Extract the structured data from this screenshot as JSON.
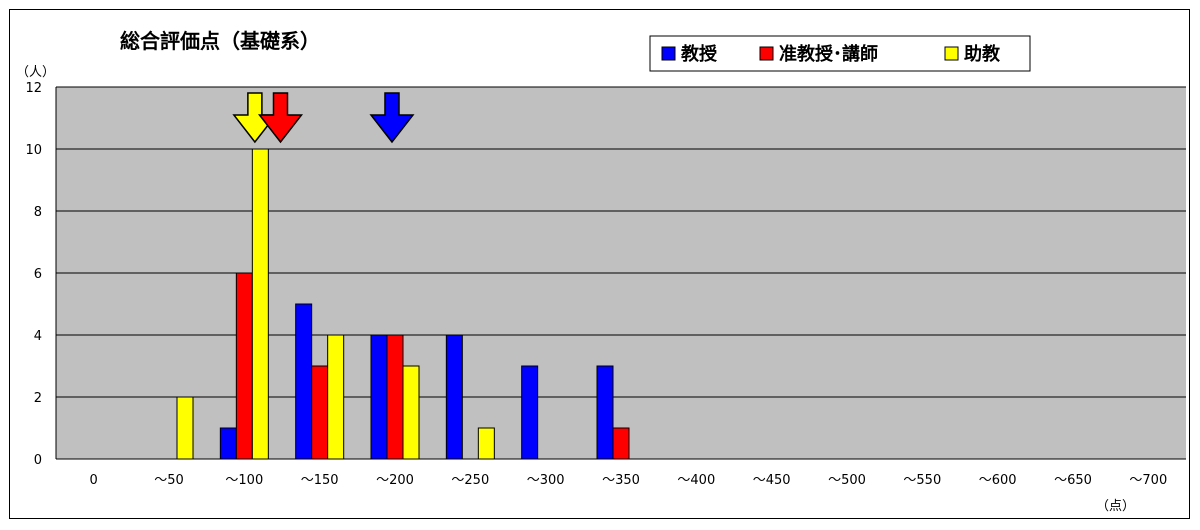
{
  "chart_data": {
    "type": "bar",
    "title": "総合評価点（基礎系）",
    "y_unit": "（人）",
    "x_unit": "（点）",
    "ylim": [
      0,
      12
    ],
    "yticks": [
      0,
      2,
      4,
      6,
      8,
      10,
      12
    ],
    "grid": true,
    "legend_position": "top-right",
    "categories": [
      "0",
      "～50",
      "～100",
      "～150",
      "～200",
      "～250",
      "～300",
      "～350",
      "～400",
      "～450",
      "～500",
      "～550",
      "～600",
      "～650",
      "～700"
    ],
    "series": [
      {
        "name": "教授",
        "color": "#0000ff",
        "values": [
          0,
          0,
          1,
          5,
          4,
          4,
          3,
          3,
          0,
          0,
          0,
          0,
          0,
          0,
          0
        ]
      },
      {
        "name": "准教授･講師",
        "color": "#ff0000",
        "values": [
          0,
          0,
          6,
          3,
          4,
          0,
          0,
          1,
          0,
          0,
          0,
          0,
          0,
          0,
          0
        ]
      },
      {
        "name": "助教",
        "color": "#ffff00",
        "values": [
          0,
          2,
          10,
          4,
          3,
          1,
          0,
          0,
          0,
          0,
          0,
          0,
          0,
          0,
          0
        ]
      }
    ],
    "mean_markers": [
      {
        "series": "助教",
        "color": "#ffff00",
        "x": 107
      },
      {
        "series": "准教授･講師",
        "color": "#ff0000",
        "x": 124
      },
      {
        "series": "教授",
        "color": "#0000ff",
        "x": 198
      }
    ]
  }
}
